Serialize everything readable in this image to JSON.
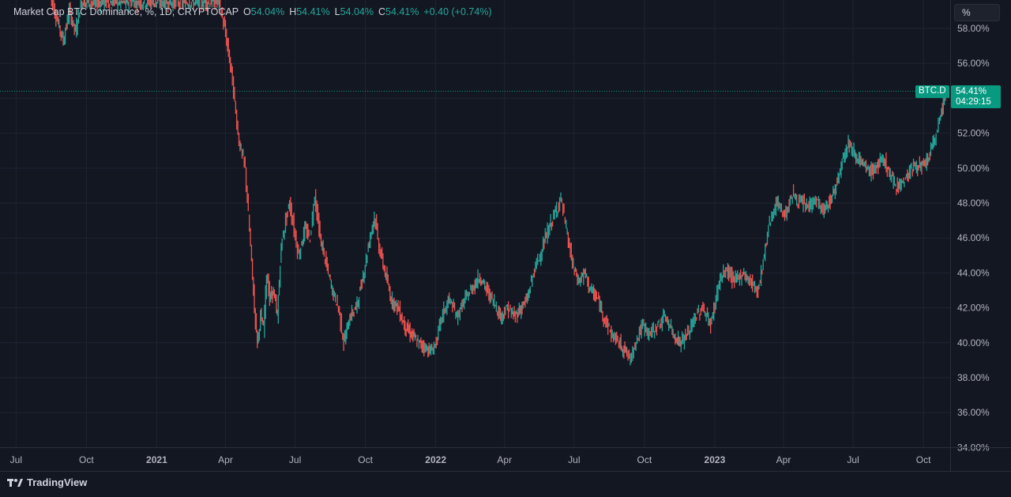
{
  "legend": {
    "title": "Market Cap BTC Dominance, %, 1D, CRYPTOCAP",
    "open_label": "O",
    "open": "54.04%",
    "high_label": "H",
    "high": "54.41%",
    "low_label": "L",
    "low": "54.04%",
    "close_label": "C",
    "close": "54.41%",
    "change": "+0.40 (+0.74%)"
  },
  "scale_button": "%",
  "last_price": {
    "symbol": "BTC.D",
    "value": "54.41%",
    "countdown": "04:29:15"
  },
  "footer": {
    "brand": "TradingView"
  },
  "colors": {
    "background": "#131722",
    "up": "#26a69a",
    "down": "#ef5350",
    "grid": "#1f2430",
    "text": "#d1d4dc"
  },
  "chart_data": {
    "type": "line",
    "ylim": [
      34,
      59.5
    ],
    "y_ticks": [
      "58.00%",
      "56.00%",
      "54.00%",
      "52.00%",
      "50.00%",
      "48.00%",
      "46.00%",
      "44.00%",
      "42.00%",
      "40.00%",
      "38.00%",
      "36.00%",
      "34.00%"
    ],
    "y_tick_values": [
      58,
      56,
      54,
      52,
      50,
      48,
      46,
      44,
      42,
      40,
      38,
      36,
      34
    ],
    "x_ticks": [
      {
        "label": "Jul",
        "date": "2020-07-01",
        "bold": false
      },
      {
        "label": "Oct",
        "date": "2020-10-01",
        "bold": false
      },
      {
        "label": "2021",
        "date": "2021-01-01",
        "bold": true
      },
      {
        "label": "Apr",
        "date": "2021-04-01",
        "bold": false
      },
      {
        "label": "Jul",
        "date": "2021-07-01",
        "bold": false
      },
      {
        "label": "Oct",
        "date": "2021-10-01",
        "bold": false
      },
      {
        "label": "2022",
        "date": "2022-01-01",
        "bold": true
      },
      {
        "label": "Apr",
        "date": "2022-04-01",
        "bold": false
      },
      {
        "label": "Jul",
        "date": "2022-07-01",
        "bold": false
      },
      {
        "label": "Oct",
        "date": "2022-10-01",
        "bold": false
      },
      {
        "label": "2023",
        "date": "2023-01-01",
        "bold": true
      },
      {
        "label": "Apr",
        "date": "2023-04-01",
        "bold": false
      },
      {
        "label": "Jul",
        "date": "2023-07-01",
        "bold": false
      },
      {
        "label": "Oct",
        "date": "2023-10-01",
        "bold": false
      }
    ],
    "x_range": [
      "2020-06-10",
      "2023-11-05"
    ],
    "last_value": 54.41,
    "series": [
      {
        "points": [
          [
            "2020-08-15",
            60.0
          ],
          [
            "2020-08-25",
            58.5
          ],
          [
            "2020-09-02",
            57.3
          ],
          [
            "2020-09-10",
            59.0
          ],
          [
            "2020-09-18",
            57.8
          ],
          [
            "2020-09-25",
            59.5
          ],
          [
            "2021-03-25",
            59.5
          ],
          [
            "2021-04-01",
            58.0
          ],
          [
            "2021-04-10",
            55.5
          ],
          [
            "2021-04-20",
            51.5
          ],
          [
            "2021-04-28",
            50.0
          ],
          [
            "2021-05-05",
            45.5
          ],
          [
            "2021-05-10",
            42.0
          ],
          [
            "2021-05-14",
            40.0
          ],
          [
            "2021-05-18",
            41.5
          ],
          [
            "2021-05-22",
            40.8
          ],
          [
            "2021-05-26",
            44.0
          ],
          [
            "2021-05-30",
            42.5
          ],
          [
            "2021-06-04",
            43.0
          ],
          [
            "2021-06-09",
            41.5
          ],
          [
            "2021-06-14",
            45.5
          ],
          [
            "2021-06-20",
            47.0
          ],
          [
            "2021-06-25",
            48.0
          ],
          [
            "2021-07-01",
            46.5
          ],
          [
            "2021-07-07",
            45.0
          ],
          [
            "2021-07-15",
            46.5
          ],
          [
            "2021-07-22",
            46.0
          ],
          [
            "2021-07-28",
            48.5
          ],
          [
            "2021-08-04",
            46.0
          ],
          [
            "2021-08-12",
            44.5
          ],
          [
            "2021-08-20",
            43.0
          ],
          [
            "2021-08-28",
            42.0
          ],
          [
            "2021-09-04",
            40.0
          ],
          [
            "2021-09-12",
            41.5
          ],
          [
            "2021-09-20",
            42.0
          ],
          [
            "2021-09-28",
            43.5
          ],
          [
            "2021-10-06",
            45.5
          ],
          [
            "2021-10-14",
            47.3
          ],
          [
            "2021-10-20",
            45.5
          ],
          [
            "2021-10-28",
            44.0
          ],
          [
            "2021-11-05",
            42.5
          ],
          [
            "2021-11-14",
            42.0
          ],
          [
            "2021-11-22",
            41.0
          ],
          [
            "2021-12-01",
            40.5
          ],
          [
            "2021-12-10",
            40.0
          ],
          [
            "2021-12-18",
            39.8
          ],
          [
            "2021-12-27",
            39.5
          ],
          [
            "2022-01-03",
            40.0
          ],
          [
            "2022-01-10",
            41.5
          ],
          [
            "2022-01-20",
            42.5
          ],
          [
            "2022-01-30",
            41.5
          ],
          [
            "2022-02-10",
            42.5
          ],
          [
            "2022-02-20",
            43.2
          ],
          [
            "2022-03-01",
            43.8
          ],
          [
            "2022-03-10",
            43.0
          ],
          [
            "2022-03-20",
            42.3
          ],
          [
            "2022-03-28",
            41.5
          ],
          [
            "2022-04-06",
            42.0
          ],
          [
            "2022-04-15",
            41.5
          ],
          [
            "2022-04-24",
            42.0
          ],
          [
            "2022-05-02",
            42.5
          ],
          [
            "2022-05-10",
            44.0
          ],
          [
            "2022-05-20",
            45.2
          ],
          [
            "2022-05-30",
            46.5
          ],
          [
            "2022-06-08",
            47.5
          ],
          [
            "2022-06-15",
            48.3
          ],
          [
            "2022-06-22",
            46.5
          ],
          [
            "2022-06-30",
            44.5
          ],
          [
            "2022-07-08",
            43.5
          ],
          [
            "2022-07-16",
            44.0
          ],
          [
            "2022-07-24",
            43.0
          ],
          [
            "2022-08-02",
            42.5
          ],
          [
            "2022-08-10",
            41.5
          ],
          [
            "2022-08-20",
            40.5
          ],
          [
            "2022-08-30",
            40.0
          ],
          [
            "2022-09-08",
            39.5
          ],
          [
            "2022-09-14",
            39.0
          ],
          [
            "2022-09-20",
            40.0
          ],
          [
            "2022-09-30",
            41.0
          ],
          [
            "2022-10-10",
            40.5
          ],
          [
            "2022-10-20",
            41.0
          ],
          [
            "2022-10-30",
            41.5
          ],
          [
            "2022-11-09",
            40.5
          ],
          [
            "2022-11-18",
            40.0
          ],
          [
            "2022-11-28",
            40.5
          ],
          [
            "2022-12-08",
            41.5
          ],
          [
            "2022-12-18",
            42.0
          ],
          [
            "2022-12-28",
            41.0
          ],
          [
            "2023-01-08",
            43.5
          ],
          [
            "2023-01-18",
            44.2
          ],
          [
            "2023-01-28",
            43.5
          ],
          [
            "2023-02-08",
            44.0
          ],
          [
            "2023-02-18",
            43.5
          ],
          [
            "2023-02-28",
            43.0
          ],
          [
            "2023-03-08",
            45.0
          ],
          [
            "2023-03-15",
            47.0
          ],
          [
            "2023-03-25",
            48.0
          ],
          [
            "2023-04-04",
            47.3
          ],
          [
            "2023-04-14",
            48.5
          ],
          [
            "2023-04-24",
            48.0
          ],
          [
            "2023-05-04",
            47.8
          ],
          [
            "2023-05-14",
            48.2
          ],
          [
            "2023-05-24",
            47.5
          ],
          [
            "2023-06-01",
            48.0
          ],
          [
            "2023-06-10",
            49.0
          ],
          [
            "2023-06-18",
            50.5
          ],
          [
            "2023-06-26",
            51.5
          ],
          [
            "2023-07-02",
            51.0
          ],
          [
            "2023-07-10",
            50.5
          ],
          [
            "2023-07-18",
            50.0
          ],
          [
            "2023-07-26",
            49.8
          ],
          [
            "2023-08-04",
            50.2
          ],
          [
            "2023-08-12",
            50.5
          ],
          [
            "2023-08-20",
            49.5
          ],
          [
            "2023-08-28",
            49.0
          ],
          [
            "2023-09-06",
            49.2
          ],
          [
            "2023-09-14",
            49.8
          ],
          [
            "2023-09-22",
            50.2
          ],
          [
            "2023-09-30",
            50.0
          ],
          [
            "2023-10-08",
            50.5
          ],
          [
            "2023-10-16",
            51.5
          ],
          [
            "2023-10-22",
            52.5
          ],
          [
            "2023-10-27",
            53.5
          ],
          [
            "2023-10-31",
            54.41
          ]
        ]
      }
    ]
  }
}
